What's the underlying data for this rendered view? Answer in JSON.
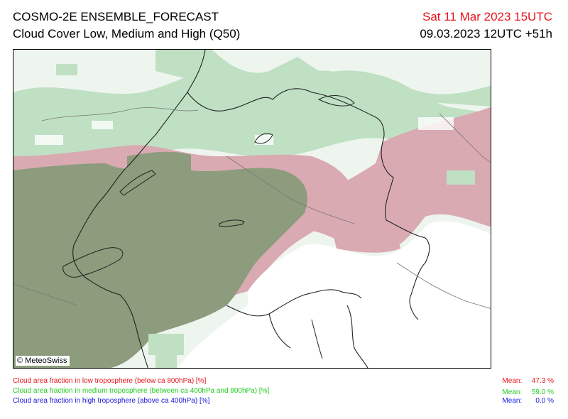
{
  "header": {
    "title_line1": "COSMO-2E ENSEMBLE_FORECAST",
    "title_line2": "Cloud Cover Low, Medium and High (Q50)",
    "valid_time": "Sat 11 Mar 2023 15UTC",
    "run_time": "09.03.2023 12UTC +51h"
  },
  "map": {
    "copyright": "© MeteoSwiss"
  },
  "legend": {
    "items": [
      {
        "label": "Cloud area fraction in low troposphere (below ca 800hPa) [%]",
        "mean_label": "Mean:",
        "mean_value": "47.3 %",
        "color": "#e8141b"
      },
      {
        "label": "Cloud area fraction in medium troposphere (between ca 400hPa and 800hPa) [%]",
        "mean_label": "Mean:",
        "mean_value": "59.0 %",
        "color": "#22cc22"
      },
      {
        "label": "Cloud area fraction in high troposphere (above ca 400hPa) [%]",
        "mean_label": "Mean:",
        "mean_value": "0.0 %",
        "color": "#1515e0"
      }
    ]
  },
  "colors": {
    "low_and_medium": "#8c9c7c",
    "low_only": "#d9aab2",
    "medium_only": "#bfe0c3",
    "light_medium": "#e2efe4",
    "clear": "#ffffff"
  }
}
